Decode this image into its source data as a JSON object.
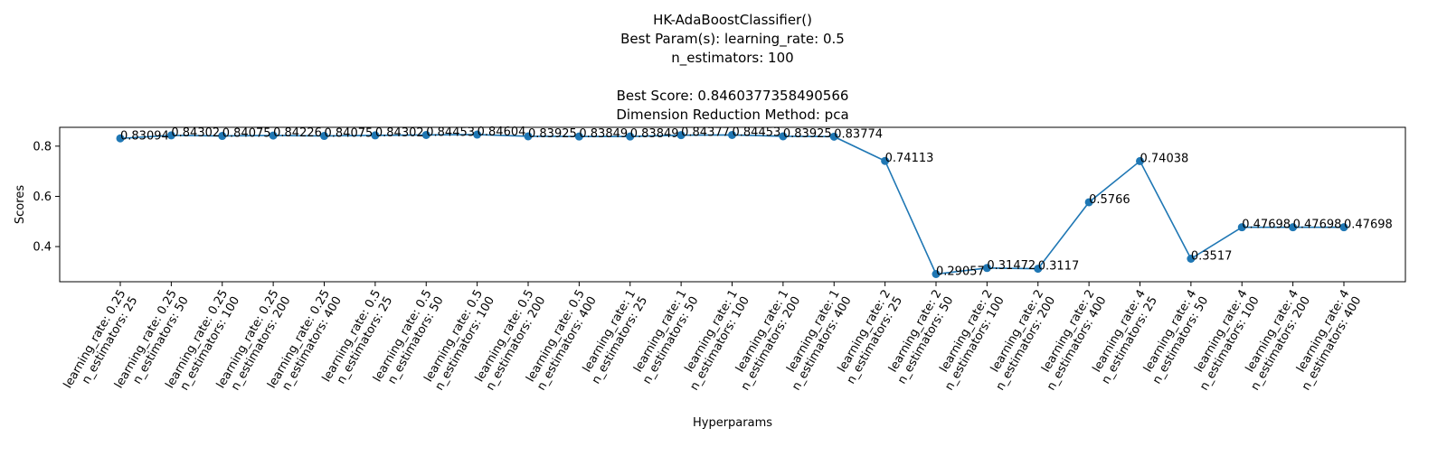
{
  "chart_data": {
    "type": "line",
    "title_lines": [
      "HK-AdaBoostClassifier()",
      "Best Param(s): learning_rate: 0.5",
      "n_estimators: 100",
      "",
      "Best Score: 0.8460377358490566",
      "Dimension Reduction Method: pca"
    ],
    "xlabel": "Hyperparams",
    "ylabel": "Scores",
    "ylim": [
      0.26,
      0.875
    ],
    "yticks": [
      "0.4",
      "0.6",
      "0.8"
    ],
    "grid": false,
    "line_color": "#1f77b4",
    "categories": [
      [
        "learning_rate: 0.25",
        "n_estimators: 25"
      ],
      [
        "learning_rate: 0.25",
        "n_estimators: 50"
      ],
      [
        "learning_rate: 0.25",
        "n_estimators: 100"
      ],
      [
        "learning_rate: 0.25",
        "n_estimators: 200"
      ],
      [
        "learning_rate: 0.25",
        "n_estimators: 400"
      ],
      [
        "learning_rate: 0.5",
        "n_estimators: 25"
      ],
      [
        "learning_rate: 0.5",
        "n_estimators: 50"
      ],
      [
        "learning_rate: 0.5",
        "n_estimators: 100"
      ],
      [
        "learning_rate: 0.5",
        "n_estimators: 200"
      ],
      [
        "learning_rate: 0.5",
        "n_estimators: 400"
      ],
      [
        "learning_rate: 1",
        "n_estimators: 25"
      ],
      [
        "learning_rate: 1",
        "n_estimators: 50"
      ],
      [
        "learning_rate: 1",
        "n_estimators: 100"
      ],
      [
        "learning_rate: 1",
        "n_estimators: 200"
      ],
      [
        "learning_rate: 1",
        "n_estimators: 400"
      ],
      [
        "learning_rate: 2",
        "n_estimators: 25"
      ],
      [
        "learning_rate: 2",
        "n_estimators: 50"
      ],
      [
        "learning_rate: 2",
        "n_estimators: 100"
      ],
      [
        "learning_rate: 2",
        "n_estimators: 200"
      ],
      [
        "learning_rate: 2",
        "n_estimators: 400"
      ],
      [
        "learning_rate: 4",
        "n_estimators: 25"
      ],
      [
        "learning_rate: 4",
        "n_estimators: 50"
      ],
      [
        "learning_rate: 4",
        "n_estimators: 100"
      ],
      [
        "learning_rate: 4",
        "n_estimators: 200"
      ],
      [
        "learning_rate: 4",
        "n_estimators: 400"
      ]
    ],
    "values": [
      0.83094,
      0.84302,
      0.84075,
      0.84226,
      0.84075,
      0.84302,
      0.84453,
      0.84604,
      0.83925,
      0.83849,
      0.83849,
      0.84377,
      0.84453,
      0.83925,
      0.83774,
      0.74113,
      0.29057,
      0.31472,
      0.3117,
      0.5766,
      0.74038,
      0.3517,
      0.47698,
      0.47698,
      0.47698
    ],
    "value_labels": [
      "0.83094",
      "0.84302",
      "0.84075",
      "0.84226",
      "0.84075",
      "0.84302",
      "0.84453",
      "0.84604",
      "0.83925",
      "0.83849",
      "0.83849",
      "0.84377",
      "0.84453",
      "0.83925",
      "0.83774",
      "0.74113",
      "0.29057",
      "0.31472",
      "0.3117",
      "0.5766",
      "0.74038",
      "0.3517",
      "0.47698",
      "0.47698",
      "0.47698"
    ]
  }
}
